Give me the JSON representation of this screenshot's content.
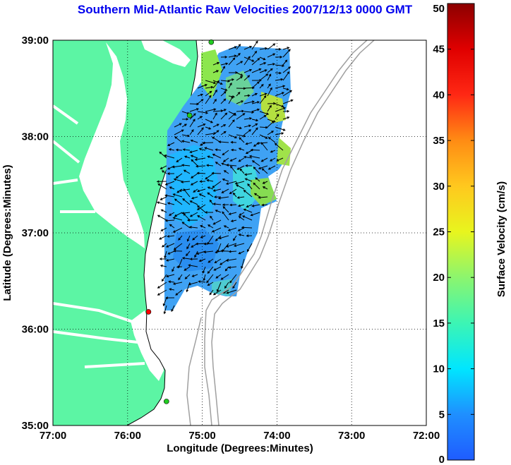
{
  "title": "Southern Mid-Atlantic Raw Velocities 2007/12/13 0000 GMT",
  "map": {
    "x_axis_label": "Longitude (Degrees:Minutes)",
    "y_axis_label": "Latitude (Degrees:Minutes)",
    "x_ticks": [
      "77:00",
      "76:00",
      "75:00",
      "74:00",
      "73:00",
      "72:00"
    ],
    "y_ticks": [
      "39:00",
      "38:00",
      "37:00",
      "36:00",
      "35:00"
    ],
    "lon_range": [
      -77,
      -72
    ],
    "lat_range": [
      35,
      39
    ],
    "grid": true,
    "land_color": "#5cf5a4",
    "stations": [
      {
        "lon": -74.88,
        "lat": 38.98,
        "color": "#22cc22"
      },
      {
        "lon": -75.17,
        "lat": 38.22,
        "color": "#22cc22"
      },
      {
        "lon": -75.72,
        "lat": 36.18,
        "color": "#ff0000"
      },
      {
        "lon": -75.48,
        "lat": 35.25,
        "color": "#22cc22"
      }
    ]
  },
  "colorbar": {
    "label": "Surface Velocity (cm/s)",
    "ticks": [
      "0",
      "5",
      "10",
      "15",
      "20",
      "25",
      "30",
      "35",
      "40",
      "45",
      "50"
    ],
    "min": 0,
    "max": 50
  }
}
